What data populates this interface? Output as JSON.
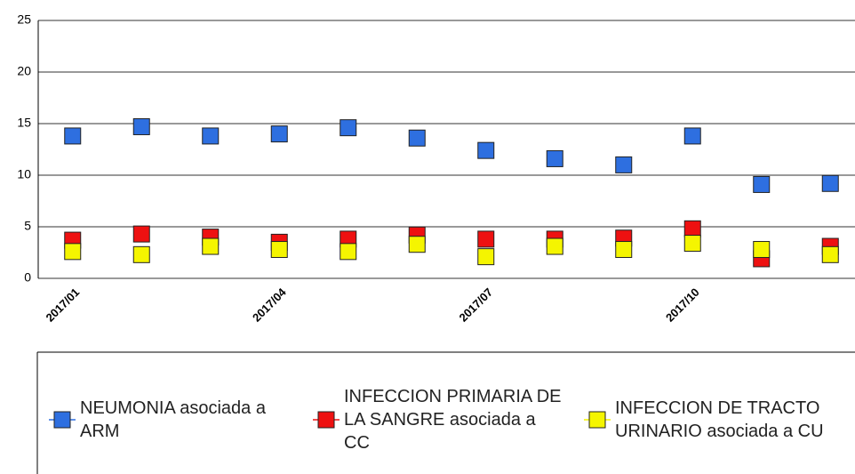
{
  "chart_data": {
    "type": "line",
    "categories": [
      "2017/01",
      null,
      null,
      "2017/04",
      null,
      null,
      "2017/07",
      null,
      null,
      "2017/10",
      null,
      null
    ],
    "series": [
      {
        "name": "NEUMONIA asociada a ARM",
        "color": "#2e6fe0",
        "values": [
          13.8,
          14.7,
          13.8,
          14.0,
          14.6,
          13.6,
          12.4,
          11.6,
          11.0,
          13.8,
          9.1,
          9.2
        ]
      },
      {
        "name": "INFECCION PRIMARIA DE LA SANGRE asociada a CC",
        "color": "#ee1111",
        "values": [
          3.7,
          4.3,
          4.0,
          3.5,
          3.8,
          4.2,
          3.8,
          3.8,
          3.9,
          4.8,
          1.9,
          3.1
        ]
      },
      {
        "name": "INFECCION DE TRACTO URINARIO asociada a CU",
        "color": "#f5f500",
        "values": [
          2.6,
          2.3,
          3.1,
          2.8,
          2.6,
          3.3,
          2.1,
          3.1,
          2.8,
          3.4,
          2.8,
          2.3
        ]
      }
    ],
    "ylim": [
      0,
      25
    ],
    "yticks": [
      0,
      5,
      10,
      15,
      20,
      25
    ],
    "grid": true,
    "legend": "bottom"
  }
}
